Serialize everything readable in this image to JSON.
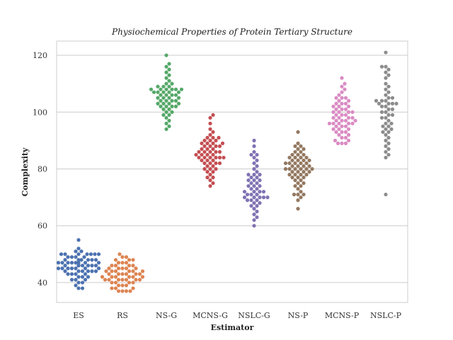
{
  "chart_data": {
    "type": "scatter",
    "subtype": "swarm",
    "title": "Physiochemical Properties of Protein Tertiary Structure",
    "xlabel": "Estimator",
    "ylabel": "Complexity",
    "ylim": [
      33,
      125
    ],
    "yticks": [
      40,
      60,
      80,
      100,
      120
    ],
    "grid": "horizontal",
    "categories": [
      "ES",
      "RS",
      "NS-G",
      "MCNS-G",
      "NSLC-G",
      "NS-P",
      "MCNS-P",
      "NSLC-P"
    ],
    "colors": [
      "#4c72b0",
      "#dd8452",
      "#55a868",
      "#c44e52",
      "#8172b3",
      "#937860",
      "#da8bc3",
      "#8c8c8c"
    ],
    "series": [
      {
        "category": "ES",
        "values": [
          55,
          52,
          51,
          51,
          50,
          50,
          50,
          50,
          50,
          50,
          50,
          49,
          49,
          49,
          49,
          48,
          48,
          48,
          48,
          48,
          48,
          47,
          47,
          47,
          47,
          47,
          47,
          47,
          47,
          46,
          46,
          46,
          46,
          46,
          46,
          46,
          46,
          46,
          45,
          45,
          45,
          45,
          45,
          45,
          45,
          44,
          44,
          44,
          44,
          44,
          44,
          43,
          43,
          43,
          43,
          42,
          42,
          42,
          41,
          41,
          41,
          40,
          40,
          39,
          38,
          38
        ]
      },
      {
        "category": "RS",
        "values": [
          50,
          49,
          49,
          48,
          48,
          48,
          47,
          47,
          47,
          46,
          46,
          46,
          46,
          45,
          45,
          45,
          45,
          45,
          44,
          44,
          44,
          44,
          44,
          44,
          43,
          43,
          43,
          43,
          43,
          43,
          42,
          42,
          42,
          42,
          42,
          42,
          41,
          41,
          41,
          41,
          41,
          41,
          41,
          40,
          40,
          40,
          40,
          39,
          39,
          39,
          38,
          38,
          38,
          37,
          37,
          37,
          37
        ]
      },
      {
        "category": "NS-G",
        "values": [
          120,
          117,
          116,
          115,
          114,
          113,
          112,
          111,
          110,
          110,
          109,
          109,
          109,
          108,
          108,
          108,
          108,
          108,
          108,
          107,
          107,
          107,
          107,
          107,
          106,
          106,
          106,
          106,
          105,
          105,
          105,
          105,
          104,
          104,
          104,
          104,
          103,
          103,
          103,
          103,
          102,
          102,
          102,
          102,
          101,
          101,
          100,
          100,
          99,
          99,
          98,
          97,
          96,
          95,
          94
        ]
      },
      {
        "category": "MCNS-G",
        "values": [
          99,
          98,
          96,
          94,
          93,
          92,
          91,
          91,
          91,
          90,
          90,
          90,
          89,
          89,
          89,
          89,
          88,
          88,
          88,
          88,
          87,
          87,
          87,
          86,
          86,
          86,
          86,
          86,
          85,
          85,
          85,
          85,
          84,
          84,
          84,
          84,
          84,
          84,
          83,
          83,
          83,
          82,
          82,
          82,
          82,
          81,
          81,
          80,
          80,
          80,
          79,
          79,
          78,
          77,
          77,
          76,
          75,
          74
        ]
      },
      {
        "category": "NSLC-G",
        "values": [
          90,
          88,
          86,
          85,
          85,
          84,
          83,
          82,
          81,
          80,
          79,
          78,
          78,
          78,
          77,
          77,
          76,
          76,
          76,
          75,
          75,
          74,
          74,
          74,
          73,
          73,
          72,
          72,
          72,
          72,
          71,
          71,
          71,
          70,
          70,
          70,
          70,
          70,
          69,
          69,
          69,
          68,
          68,
          67,
          67,
          66,
          65,
          64,
          63,
          62,
          60
        ]
      },
      {
        "category": "NS-P",
        "values": [
          93,
          89,
          88,
          88,
          87,
          87,
          86,
          86,
          85,
          85,
          85,
          84,
          84,
          84,
          84,
          83,
          83,
          83,
          83,
          82,
          82,
          82,
          82,
          82,
          81,
          81,
          81,
          81,
          80,
          80,
          80,
          80,
          80,
          80,
          79,
          79,
          79,
          79,
          78,
          78,
          78,
          78,
          77,
          77,
          77,
          76,
          76,
          75,
          75,
          74,
          74,
          73,
          72,
          71,
          71,
          71,
          70,
          69,
          66
        ]
      },
      {
        "category": "MCNS-P",
        "values": [
          112,
          110,
          109,
          108,
          107,
          106,
          105,
          105,
          105,
          104,
          104,
          103,
          103,
          103,
          102,
          102,
          102,
          101,
          101,
          101,
          100,
          100,
          100,
          100,
          99,
          99,
          99,
          98,
          98,
          98,
          98,
          97,
          97,
          97,
          97,
          96,
          96,
          96,
          96,
          96,
          95,
          95,
          95,
          94,
          94,
          94,
          93,
          93,
          93,
          92,
          92,
          91,
          91,
          90,
          90,
          89,
          89,
          89
        ]
      },
      {
        "category": "NSLC-P",
        "values": [
          121,
          116,
          116,
          115,
          114,
          113,
          112,
          110,
          109,
          108,
          107,
          106,
          105,
          105,
          104,
          104,
          104,
          103,
          103,
          103,
          103,
          102,
          102,
          101,
          101,
          100,
          100,
          99,
          99,
          98,
          98,
          97,
          96,
          96,
          95,
          95,
          94,
          94,
          93,
          93,
          92,
          91,
          90,
          89,
          88,
          87,
          86,
          85,
          84,
          71
        ]
      }
    ]
  }
}
